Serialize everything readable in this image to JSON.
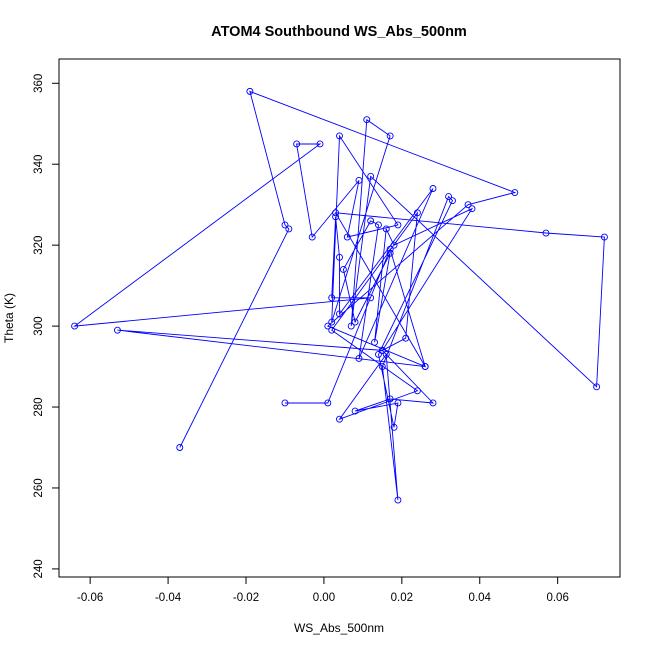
{
  "chart_data": {
    "type": "line",
    "title": "ATOM4 Southbound WS_Abs_500nm",
    "xlabel": "WS_Abs_500nm",
    "ylabel": "Theta (K)",
    "xlim": [
      -0.068,
      0.076
    ],
    "ylim": [
      238,
      366
    ],
    "x_ticks": [
      -0.06,
      -0.04,
      -0.02,
      0.0,
      0.02,
      0.04,
      0.06
    ],
    "x_tick_labels": [
      "-0.06",
      "-0.04",
      "-0.02",
      "0.00",
      "0.02",
      "0.04",
      "0.06"
    ],
    "y_ticks": [
      240,
      260,
      280,
      300,
      320,
      340,
      360
    ],
    "y_tick_labels": [
      "240",
      "260",
      "280",
      "300",
      "320",
      "340",
      "360"
    ],
    "grid": false,
    "line_color": "#0000ff",
    "marker": "open-circle",
    "x": [
      -0.037,
      -0.009,
      -0.01,
      -0.019,
      0.049,
      0.037,
      0.001,
      0.026,
      0.003,
      0.057,
      0.072,
      0.07,
      0.012,
      0.007,
      0.011,
      0.017,
      0.002,
      0.004,
      0.019,
      0.006,
      0.009,
      -0.003,
      -0.007,
      -0.001,
      -0.064,
      0.012,
      0.002,
      0.003,
      0.004,
      0.004,
      0.028,
      0.009,
      0.014,
      0.012,
      0.005,
      0.008,
      0.017,
      0.013,
      0.016,
      0.018,
      0.038,
      0.015,
      0.021,
      0.024,
      0.002,
      0.024,
      0.004,
      0.016,
      0.019,
      0.015,
      0.032,
      0.033,
      0.014,
      0.018,
      0.019,
      0.008,
      0.017,
      0.028,
      0.015,
      -0.053,
      0.026,
      0.017,
      0.001,
      -0.01
    ],
    "y": [
      270,
      324,
      325,
      358,
      333,
      330,
      300,
      290,
      328,
      323,
      322,
      285,
      337,
      300,
      351,
      347,
      301,
      347,
      325,
      322,
      336,
      322,
      345,
      345,
      300,
      307,
      307,
      327,
      317,
      303,
      334,
      292,
      325,
      326,
      314,
      301,
      318,
      296,
      324,
      320,
      329,
      294,
      297,
      328,
      299,
      284,
      277,
      293,
      257,
      290,
      332,
      331,
      293,
      275,
      281,
      279,
      282,
      281,
      294,
      299,
      290,
      319,
      281,
      281
    ]
  }
}
